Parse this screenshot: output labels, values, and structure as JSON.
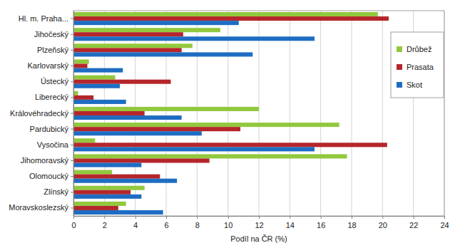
{
  "chart_data": {
    "type": "bar",
    "orientation": "horizontal",
    "categories": [
      "Hl. m. Praha...",
      "Jihočeský",
      "Plzeňský",
      "Karlovarský",
      "Ústecký",
      "Liberecký",
      "Královéhradecký",
      "Pardubický",
      "Vysočina",
      "Jihomoravský",
      "Olomoucký",
      "Zlínský",
      "Moravskoslezský"
    ],
    "series": [
      {
        "name": "Drůbež",
        "color": "#92c83e",
        "values": [
          19.7,
          9.5,
          7.7,
          1.0,
          2.7,
          0.3,
          12.0,
          17.2,
          1.4,
          17.7,
          2.5,
          4.6,
          3.4
        ]
      },
      {
        "name": "Prasata",
        "color": "#b5262a",
        "values": [
          20.4,
          7.1,
          7.0,
          0.9,
          6.3,
          1.3,
          4.6,
          10.8,
          20.3,
          8.8,
          5.6,
          3.7,
          2.9
        ]
      },
      {
        "name": "Skot",
        "color": "#1e6dc3",
        "values": [
          10.7,
          15.6,
          11.6,
          3.2,
          3.0,
          3.4,
          7.0,
          8.3,
          15.6,
          4.4,
          6.7,
          4.4,
          5.8
        ]
      }
    ],
    "xlabel": "Podíl na ČR (%)",
    "xlim": [
      0,
      24
    ],
    "xticks": [
      0,
      2,
      4,
      6,
      8,
      10,
      12,
      14,
      16,
      18,
      20,
      22,
      24
    ],
    "grid": true,
    "legend": "right"
  }
}
